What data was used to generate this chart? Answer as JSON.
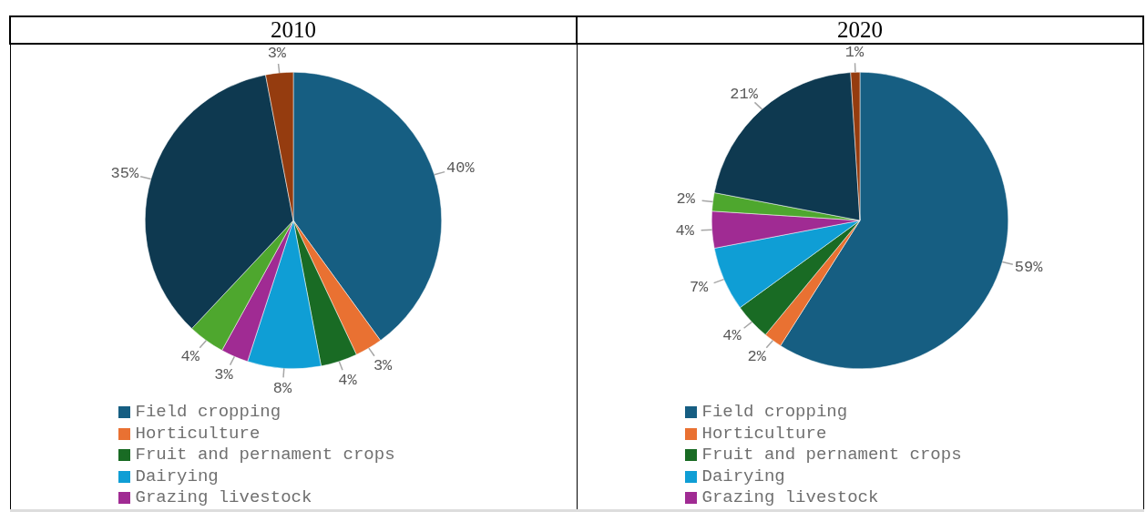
{
  "chart_data": [
    {
      "type": "pie",
      "title": "2010",
      "categories": [
        "Field cropping",
        "Horticulture",
        "Fruit and pernament crops",
        "Dairying",
        "Grazing livestock",
        null,
        null,
        null
      ],
      "values": [
        40,
        3,
        4,
        8,
        3,
        4,
        35,
        3
      ],
      "value_labels": [
        "40%",
        "3%",
        "4%",
        "8%",
        "3%",
        "4%",
        "35%",
        "3%"
      ],
      "colors": [
        "#165e82",
        "#e97132",
        "#196b24",
        "#0f9ed5",
        "#a02b93",
        "#4ea72e",
        "#0e3950",
        "#953c0f"
      ],
      "legend": "bottom"
    },
    {
      "type": "pie",
      "title": "2020",
      "categories": [
        "Field cropping",
        "Horticulture",
        "Fruit and pernament crops",
        "Dairying",
        "Grazing livestock",
        null,
        null,
        null
      ],
      "values": [
        59,
        2,
        4,
        7,
        4,
        2,
        21,
        1
      ],
      "value_labels": [
        "59%",
        "2%",
        "4%",
        "7%",
        "4%",
        "2%",
        "21%",
        "1%"
      ],
      "colors": [
        "#165e82",
        "#e97132",
        "#196b24",
        "#0f9ed5",
        "#a02b93",
        "#4ea72e",
        "#0e3950",
        "#953c0f"
      ],
      "legend": "bottom"
    }
  ]
}
